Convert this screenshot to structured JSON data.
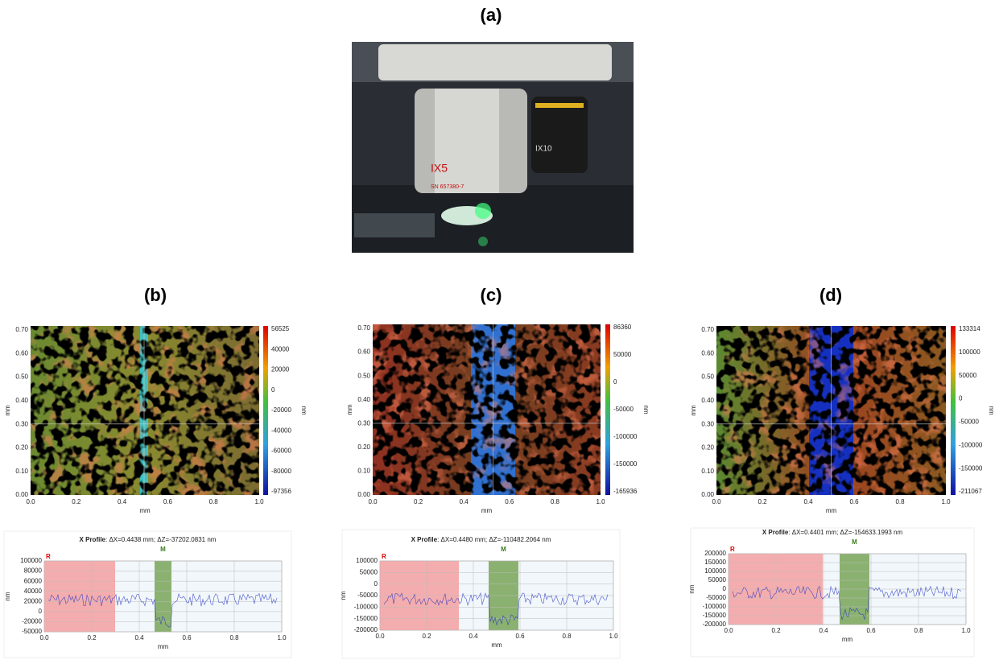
{
  "panels": [
    {
      "label": "(a)",
      "photo": {
        "labels": [
          "IX5",
          "SN 657380-7",
          "IX10"
        ]
      }
    },
    {
      "label": "(b)",
      "map": {
        "ylabel": "mm",
        "xlabel": "mm",
        "yticks": [
          "0.70",
          "0.60",
          "0.50",
          "0.40",
          "0.30",
          "0.20",
          "0.10",
          "0.00"
        ],
        "xticks": [
          "0.0",
          "0.2",
          "0.4",
          "0.6",
          "0.8",
          "1.0"
        ],
        "colorbar": {
          "ticks": [
            "56525",
            "40000",
            "20000",
            "0",
            "-20000",
            "-40000",
            "-60000",
            "-80000",
            "-97356"
          ],
          "unit": "nm"
        }
      },
      "profile": {
        "title": "X Profile",
        "readout": ": ΔX=0.4438 mm; ΔZ=-37202.0831 nm",
        "markers": [
          "R",
          "M"
        ],
        "ylabel": "nm",
        "xlabel": "mm",
        "yticks": [
          "100000",
          "80000",
          "60000",
          "40000",
          "20000",
          "0",
          "-20000",
          "-50000"
        ],
        "xticks": [
          "0.0",
          "0.2",
          "0.4",
          "0.6",
          "0.8",
          "1.0"
        ]
      }
    },
    {
      "label": "(c)",
      "map": {
        "ylabel": "mm",
        "xlabel": "mm",
        "yticks": [
          "0.70",
          "0.60",
          "0.50",
          "0.40",
          "0.30",
          "0.20",
          "0.10",
          "0.00"
        ],
        "xticks": [
          "0.0",
          "0.2",
          "0.4",
          "0.6",
          "0.8",
          "1.0"
        ],
        "colorbar": {
          "ticks": [
            "86360",
            "50000",
            "0",
            "-50000",
            "-100000",
            "-150000",
            "-165936"
          ],
          "unit": "nm"
        }
      },
      "profile": {
        "title": "X Profile",
        "readout": ": ΔX=0.4480 mm; ΔZ=-110482.2064 nm",
        "markers": [
          "R",
          "M"
        ],
        "ylabel": "nm",
        "xlabel": "mm",
        "yticks": [
          "100000",
          "50000",
          "0",
          "-50000",
          "-100000",
          "-150000",
          "-200000"
        ],
        "xticks": [
          "0.0",
          "0.2",
          "0.4",
          "0.6",
          "0.8",
          "1.0"
        ]
      }
    },
    {
      "label": "(d)",
      "map": {
        "ylabel": "mm",
        "xlabel": "mm",
        "yticks": [
          "0.70",
          "0.60",
          "0.50",
          "0.40",
          "0.30",
          "0.20",
          "0.10",
          "0.00"
        ],
        "xticks": [
          "0.0",
          "0.2",
          "0.4",
          "0.6",
          "0.8",
          "1.0"
        ],
        "colorbar": {
          "ticks": [
            "133314",
            "100000",
            "50000",
            "0",
            "-50000",
            "-100000",
            "-150000",
            "-211067"
          ],
          "unit": "nm"
        }
      },
      "profile": {
        "title": "X Profile",
        "readout": ": ΔX=0.4401 mm; ΔZ=-154633.1993 nm",
        "markers": [
          "R",
          "M"
        ],
        "ylabel": "nm",
        "xlabel": "mm",
        "yticks": [
          "200000",
          "150000",
          "100000",
          "50000",
          "0",
          "-50000",
          "-100000",
          "-150000",
          "-200000"
        ],
        "xticks": [
          "0.0",
          "0.2",
          "0.4",
          "0.6",
          "0.8",
          "1.0"
        ]
      }
    }
  ]
}
